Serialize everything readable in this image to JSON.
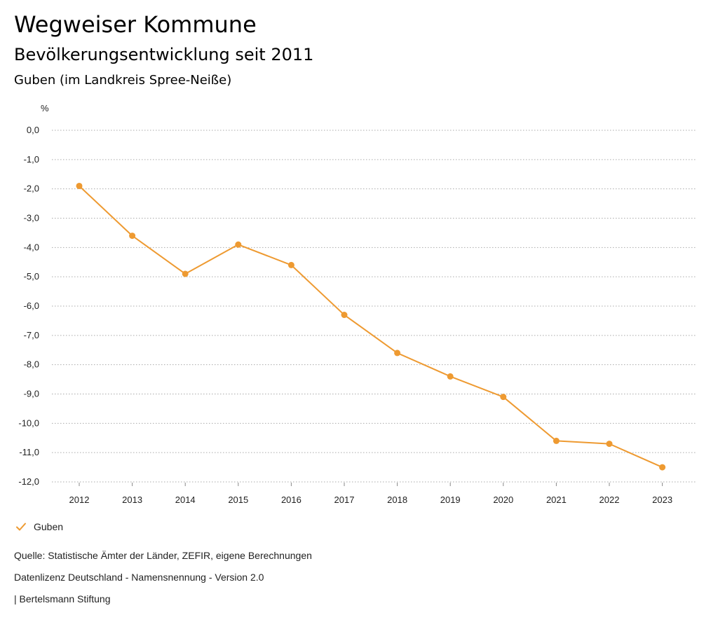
{
  "header": {
    "title": "Wegweiser Kommune",
    "subtitle": "Bevölkerungsentwicklung seit 2011",
    "region": "Guben (im Landkreis Spree-Neiße)"
  },
  "legend": {
    "label": "Guben",
    "icon": "check-icon"
  },
  "footer": {
    "source": "Quelle: Statistische Ämter der Länder, ZEFIR, eigene Berechnungen",
    "license": "Datenlizenz Deutschland - Namensnennung - Version 2.0",
    "publisher": "| Bertelsmann Stiftung"
  },
  "colors": {
    "series": "#ee9a31",
    "grid": "#aaaaaa",
    "text": "#222222"
  },
  "chart_data": {
    "type": "line",
    "title": "Bevölkerungsentwicklung seit 2011",
    "xlabel": "",
    "ylabel": "%",
    "categories": [
      "2012",
      "2013",
      "2014",
      "2015",
      "2016",
      "2017",
      "2018",
      "2019",
      "2020",
      "2021",
      "2022",
      "2023"
    ],
    "series": [
      {
        "name": "Guben",
        "values": [
          -1.9,
          -3.6,
          -4.9,
          -3.9,
          -4.6,
          -6.3,
          -7.6,
          -8.4,
          -9.1,
          -10.6,
          -10.7,
          -11.5
        ]
      }
    ],
    "ylim": [
      -12,
      0
    ],
    "yticks": [
      "0,0",
      "-1,0",
      "-2,0",
      "-3,0",
      "-4,0",
      "-5,0",
      "-6,0",
      "-7,0",
      "-8,0",
      "-9,0",
      "-10,0",
      "-11,0",
      "-12,0"
    ],
    "grid": true,
    "legend_position": "bottom-left"
  }
}
